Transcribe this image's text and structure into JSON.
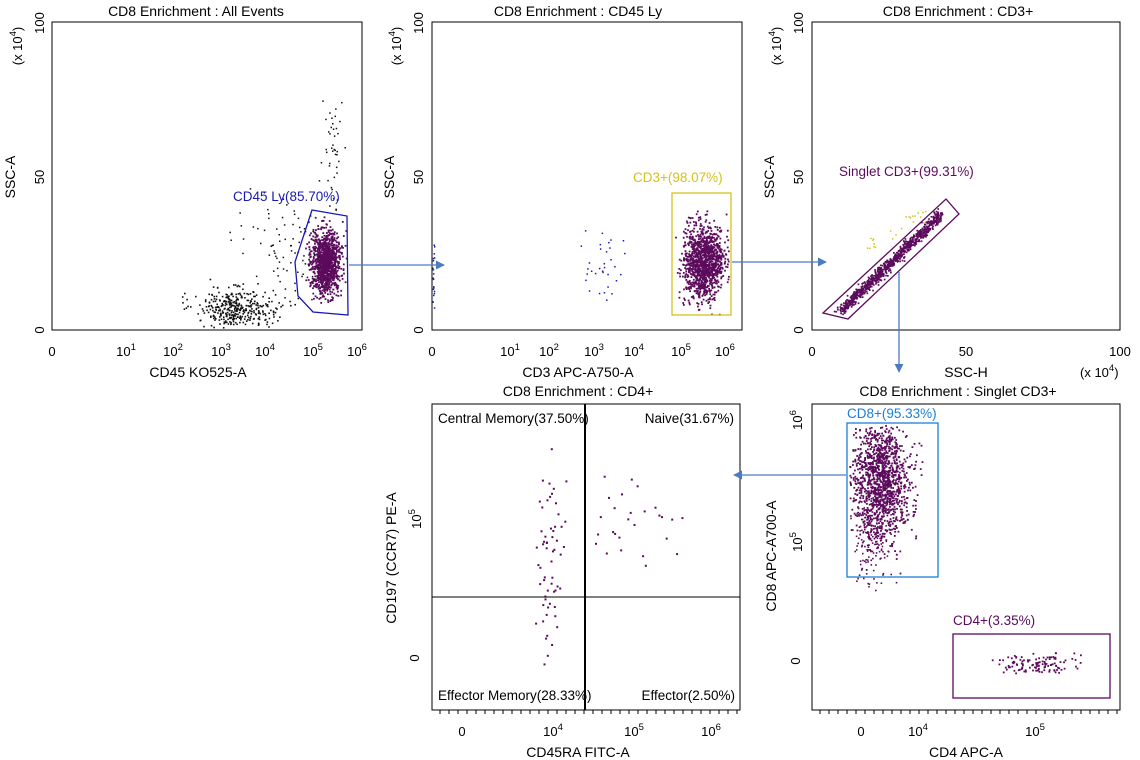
{
  "chart_data": [
    {
      "type": "scatter",
      "title": "CD8 Enrichment : All Events",
      "xlabel": "CD45 KO525-A",
      "ylabel": "SSC-A",
      "x_scale": "log",
      "x_ticks": [
        "0",
        "10",
        "10",
        "10",
        "10",
        "10",
        "10"
      ],
      "x_tick_exponents": [
        "",
        "1",
        "2",
        "3",
        "4",
        "5",
        "6"
      ],
      "y_ticks": [
        "0",
        "50",
        "100"
      ],
      "y_multiplier": "(x 10",
      "y_multiplier_exp": "4",
      "ylim": [
        0,
        100
      ],
      "gate": {
        "label": "CD45 Ly(85.70%)",
        "name": "CD45 Ly",
        "percent": 85.7,
        "color": "#1a1ab0"
      },
      "populations": [
        {
          "name": "gated lymphocytes",
          "color": "#5c0a5c",
          "x_log_center": 5.2,
          "y_center": 21
        },
        {
          "name": "debris",
          "color": "#111111",
          "x_log_center": 3.2,
          "y_center": 6
        }
      ]
    },
    {
      "type": "scatter",
      "title": "CD8 Enrichment : CD45 Ly",
      "xlabel": "CD3 APC-A750-A",
      "ylabel": "SSC-A",
      "x_scale": "log",
      "x_ticks": [
        "0",
        "10",
        "10",
        "10",
        "10",
        "10",
        "10"
      ],
      "x_tick_exponents": [
        "",
        "1",
        "2",
        "3",
        "4",
        "5",
        "6"
      ],
      "y_ticks": [
        "0",
        "50",
        "100"
      ],
      "y_multiplier": "(x 10",
      "y_multiplier_exp": "4",
      "ylim": [
        0,
        100
      ],
      "gate": {
        "label": "CD3+(98.07%)",
        "name": "CD3+",
        "percent": 98.07,
        "color": "#d4c21a"
      }
    },
    {
      "type": "scatter",
      "title": "CD8 Enrichment : CD3+",
      "xlabel": "SSC-H",
      "ylabel": "SSC-A",
      "x_scale": "linear",
      "x_ticks": [
        "0",
        "50",
        "100"
      ],
      "x_multiplier": "(x 10",
      "x_multiplier_exp": "4",
      "xlim": [
        0,
        100
      ],
      "y_ticks": [
        "0",
        "50",
        "100"
      ],
      "y_multiplier": "(x 10",
      "y_multiplier_exp": "4",
      "ylim": [
        0,
        100
      ],
      "gate": {
        "label": "Singlet CD3+(99.31%)",
        "name": "Singlet CD3+",
        "percent": 99.31,
        "color": "#5c0a5c"
      }
    },
    {
      "type": "scatter",
      "title": "CD8 Enrichment : CD4+",
      "xlabel": "CD45RA FITC-A",
      "ylabel": "CD197 (CCR7) PE-A",
      "x_scale": "biexponential",
      "x_ticks": [
        "0",
        "10",
        "10",
        "10"
      ],
      "x_tick_exponents": [
        "",
        "4",
        "5",
        "6"
      ],
      "y_ticks": [
        "0",
        "10"
      ],
      "y_tick_exponents": [
        "",
        "5"
      ],
      "quadrants": [
        {
          "label": "Central Memory(37.50%)",
          "name": "Central Memory",
          "percent": 37.5,
          "position": "top-left"
        },
        {
          "label": "Naive(31.67%)",
          "name": "Naive",
          "percent": 31.67,
          "position": "top-right"
        },
        {
          "label": "Effector Memory(28.33%)",
          "name": "Effector Memory",
          "percent": 28.33,
          "position": "bottom-left"
        },
        {
          "label": "Effector(2.50%)",
          "name": "Effector",
          "percent": 2.5,
          "position": "bottom-right"
        }
      ]
    },
    {
      "type": "scatter",
      "title": "CD8 Enrichment : Singlet CD3+",
      "xlabel": "CD4 APC-A",
      "ylabel": "CD8 APC-A700-A",
      "x_scale": "biexponential",
      "x_ticks": [
        "0",
        "10",
        "10"
      ],
      "x_tick_exponents": [
        "",
        "4",
        "5"
      ],
      "y_ticks": [
        "0",
        "10",
        "10"
      ],
      "y_tick_exponents": [
        "",
        "5",
        "6"
      ],
      "gates": [
        {
          "label": "CD8+(95.33%)",
          "name": "CD8+",
          "percent": 95.33,
          "color": "#1a7fd4"
        },
        {
          "label": "CD4+(3.35%)",
          "name": "CD4+",
          "percent": 3.35,
          "color": "#5c0a5c"
        }
      ]
    }
  ],
  "colors": {
    "event": "#5c0a5c",
    "debris": "#111111",
    "arrow": "#4a7cc0",
    "cd45_gate": "#1a1ab0",
    "cd3_gate": "#d4c21a",
    "cd8_gate": "#1a7fd4",
    "singlet_gate": "#5c0a5c",
    "cd4_gate": "#5c0a5c",
    "sparse_blue": "#1a1ab0"
  }
}
